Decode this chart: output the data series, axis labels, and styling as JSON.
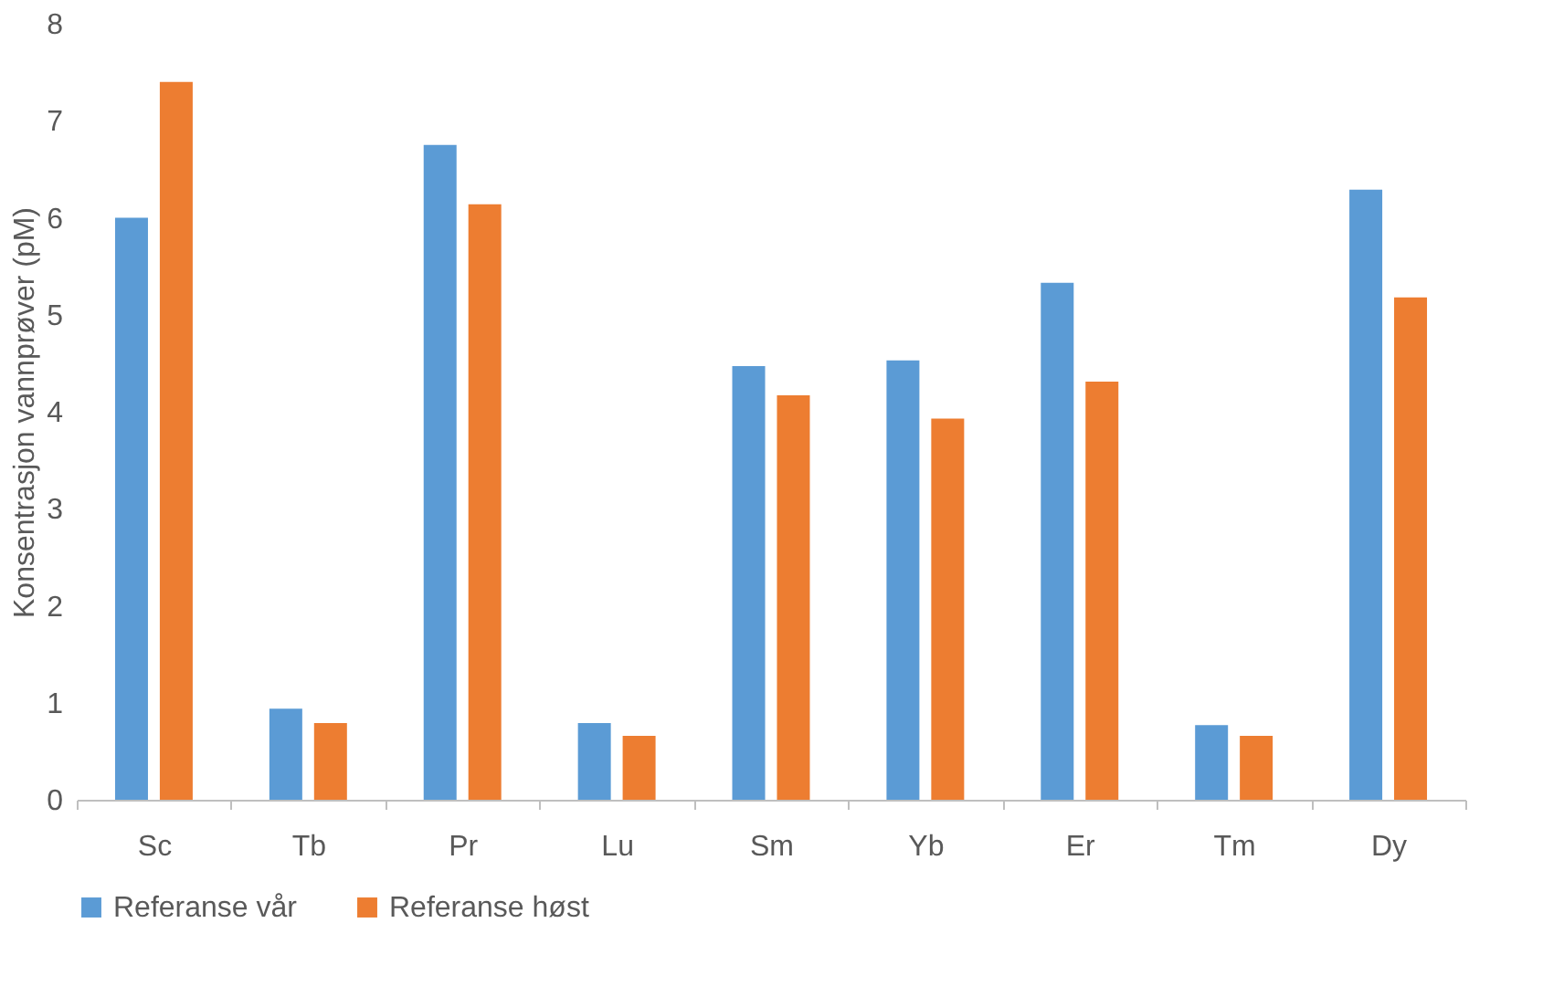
{
  "chart_data": {
    "type": "bar",
    "ylabel": "Konsentrasjon vannprøver (pM)",
    "categories": [
      "Sc",
      "Tb",
      "Pr",
      "Lu",
      "Sm",
      "Yb",
      "Er",
      "Tm",
      "Dy"
    ],
    "series": [
      {
        "name": "Referanse vår",
        "color": "#5b9bd5",
        "values": [
          6.0,
          0.94,
          6.75,
          0.79,
          4.47,
          4.53,
          5.33,
          0.77,
          6.29
        ]
      },
      {
        "name": "Referanse høst",
        "color": "#ed7d31",
        "values": [
          7.4,
          0.79,
          6.14,
          0.66,
          4.17,
          3.93,
          4.31,
          0.66,
          5.18
        ]
      }
    ],
    "ylim": [
      0,
      8
    ],
    "yticks": [
      0,
      1,
      2,
      3,
      4,
      5,
      6,
      7,
      8
    ],
    "grid": false,
    "legend": "bottom"
  }
}
